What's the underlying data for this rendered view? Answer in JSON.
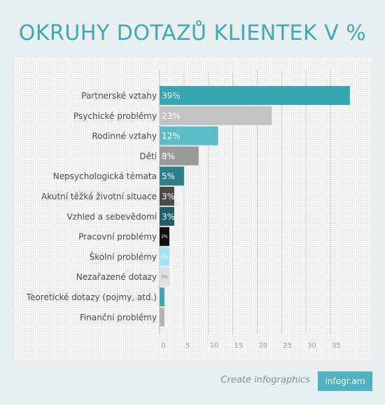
{
  "title": "OKRUHY DOTAZŮ KLIENTEK V %",
  "footer": {
    "text": "Create infographics",
    "badge": "infogr.am"
  },
  "chart_data": {
    "type": "bar",
    "orientation": "horizontal",
    "title": "OKRUHY DOTAZŮ KLIENTEK V %",
    "categories": [
      "Partnerské vztahy",
      "Psychické problémy",
      "Rodinné vztahy",
      "Děti",
      "Nepsychologická témata",
      "Akutní těžká životní situace",
      "Vzhled a sebevědomí",
      "Pracovní problémy",
      "Školní problémy",
      "Nezařazené dotazy",
      "Teoretické dotazy (pojmy, atd.)",
      "Finanční problémy"
    ],
    "values": [
      39,
      23,
      12,
      8,
      5,
      3,
      3,
      2,
      2,
      2,
      1,
      1
    ],
    "data_labels": [
      "39%",
      "23%",
      "12%",
      "8%",
      "5%",
      "3%",
      "3%",
      "2%",
      "2%",
      "2%",
      "",
      ""
    ],
    "colors": [
      "#35a6b3",
      "#c2c2c2",
      "#5bbcc7",
      "#9a9a9a",
      "#2c7e87",
      "#4a4a4a",
      "#1f5e66",
      "#111111",
      "#9ee6ef",
      "#e0e0e0",
      "#3ba8b5",
      "#b4b4b4"
    ],
    "label_colors": [
      "#ffffff",
      "#ffffff",
      "#ffffff",
      "#ffffff",
      "#ffffff",
      "#ffffff",
      "#ffffff",
      "#ffffff",
      "#ffffff",
      "#777777",
      "#ffffff",
      "#ffffff"
    ],
    "xticks": [
      0,
      5,
      10,
      15,
      20,
      25,
      30,
      35
    ],
    "xlim": [
      0,
      40
    ],
    "grid": true
  }
}
